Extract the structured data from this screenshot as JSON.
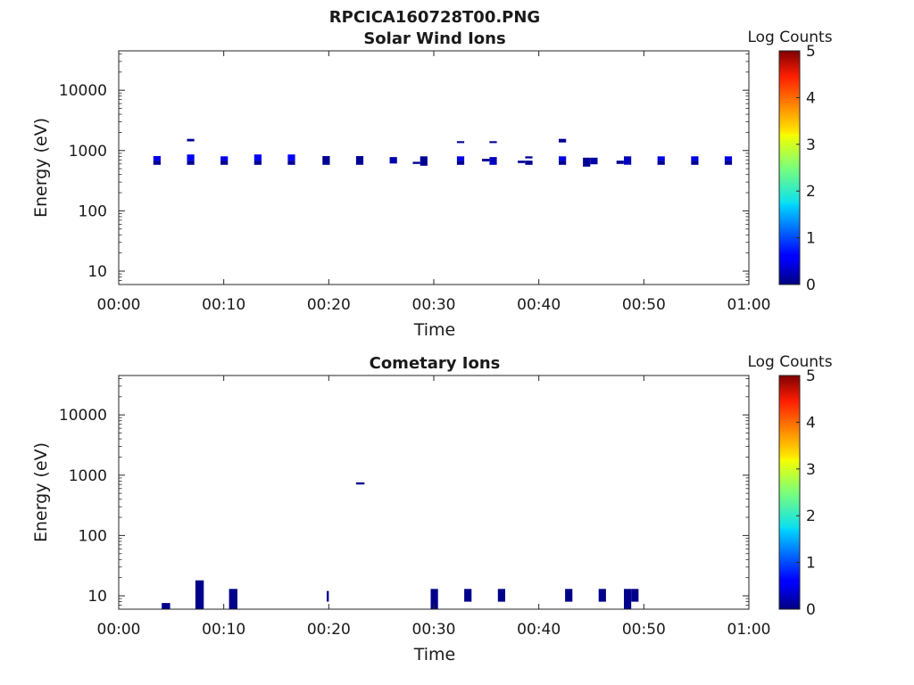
{
  "figure_title": "RPCICA160728T00.PNG",
  "chart_data": [
    {
      "type": "heatmap",
      "title": "Solar Wind Ions",
      "xlabel": "Time",
      "ylabel": "Energy (eV)",
      "x_unit": "minutes after 00:00",
      "xlim": [
        0,
        60
      ],
      "xticks": [
        "00:00",
        "00:10",
        "00:20",
        "00:30",
        "00:40",
        "00:50",
        "01:00"
      ],
      "ylim": [
        6,
        45000
      ],
      "yscale": "log",
      "yticks": [
        "10",
        "100",
        "1000",
        "10000"
      ],
      "colorbar": {
        "label": "Log Counts",
        "range": [
          0,
          5
        ],
        "ticks": [
          "0",
          "1",
          "2",
          "3",
          "4",
          "5"
        ],
        "colormap": "jet"
      },
      "cells": [
        {
          "t0": 3.3,
          "t1": 4.0,
          "e0": 580,
          "e1": 680,
          "v": 0.1
        },
        {
          "t0": 3.3,
          "t1": 4.0,
          "e0": 680,
          "e1": 810,
          "v": 0.5
        },
        {
          "t0": 6.5,
          "t1": 7.2,
          "e0": 580,
          "e1": 680,
          "v": 0.1
        },
        {
          "t0": 6.5,
          "t1": 7.2,
          "e0": 680,
          "e1": 860,
          "v": 0.6
        },
        {
          "t0": 6.5,
          "t1": 7.2,
          "e0": 1420,
          "e1": 1560,
          "v": 0.1
        },
        {
          "t0": 9.7,
          "t1": 10.4,
          "e0": 580,
          "e1": 680,
          "v": 0.1
        },
        {
          "t0": 9.7,
          "t1": 10.4,
          "e0": 680,
          "e1": 800,
          "v": 0.5
        },
        {
          "t0": 12.9,
          "t1": 13.6,
          "e0": 580,
          "e1": 680,
          "v": 0.1
        },
        {
          "t0": 12.9,
          "t1": 13.6,
          "e0": 680,
          "e1": 860,
          "v": 0.6
        },
        {
          "t0": 16.1,
          "t1": 16.8,
          "e0": 580,
          "e1": 680,
          "v": 0.1
        },
        {
          "t0": 16.1,
          "t1": 16.8,
          "e0": 680,
          "e1": 860,
          "v": 0.6
        },
        {
          "t0": 19.4,
          "t1": 20.1,
          "e0": 580,
          "e1": 810,
          "v": 0.1
        },
        {
          "t0": 22.6,
          "t1": 23.3,
          "e0": 580,
          "e1": 810,
          "v": 0.1
        },
        {
          "t0": 25.8,
          "t1": 26.5,
          "e0": 610,
          "e1": 780,
          "v": 0.2
        },
        {
          "t0": 28.0,
          "t1": 28.7,
          "e0": 600,
          "e1": 650,
          "v": 0.1
        },
        {
          "t0": 28.7,
          "t1": 29.4,
          "e0": 560,
          "e1": 800,
          "v": 0.1
        },
        {
          "t0": 32.2,
          "t1": 32.9,
          "e0": 1330,
          "e1": 1430,
          "v": 0.1
        },
        {
          "t0": 32.2,
          "t1": 32.9,
          "e0": 580,
          "e1": 680,
          "v": 0.1
        },
        {
          "t0": 32.2,
          "t1": 32.9,
          "e0": 680,
          "e1": 800,
          "v": 0.5
        },
        {
          "t0": 34.6,
          "t1": 35.3,
          "e0": 660,
          "e1": 730,
          "v": 0.1
        },
        {
          "t0": 35.3,
          "t1": 36.0,
          "e0": 580,
          "e1": 780,
          "v": 0.3
        },
        {
          "t0": 35.3,
          "t1": 36.0,
          "e0": 1330,
          "e1": 1430,
          "v": 0.1
        },
        {
          "t0": 38.0,
          "t1": 38.7,
          "e0": 620,
          "e1": 680,
          "v": 0.1
        },
        {
          "t0": 38.7,
          "t1": 39.4,
          "e0": 580,
          "e1": 680,
          "v": 0.1
        },
        {
          "t0": 38.7,
          "t1": 39.4,
          "e0": 740,
          "e1": 800,
          "v": 0.1
        },
        {
          "t0": 41.9,
          "t1": 42.6,
          "e0": 580,
          "e1": 680,
          "v": 0.1
        },
        {
          "t0": 41.9,
          "t1": 42.6,
          "e0": 680,
          "e1": 800,
          "v": 0.5
        },
        {
          "t0": 41.9,
          "t1": 42.6,
          "e0": 1360,
          "e1": 1560,
          "v": 0.1
        },
        {
          "t0": 44.2,
          "t1": 44.9,
          "e0": 540,
          "e1": 760,
          "v": 0.1
        },
        {
          "t0": 44.9,
          "t1": 45.6,
          "e0": 590,
          "e1": 760,
          "v": 0.2
        },
        {
          "t0": 47.4,
          "t1": 48.1,
          "e0": 600,
          "e1": 680,
          "v": 0.1
        },
        {
          "t0": 48.1,
          "t1": 48.8,
          "e0": 580,
          "e1": 800,
          "v": 0.3
        },
        {
          "t0": 51.3,
          "t1": 52.0,
          "e0": 580,
          "e1": 680,
          "v": 0.1
        },
        {
          "t0": 51.3,
          "t1": 52.0,
          "e0": 680,
          "e1": 800,
          "v": 0.5
        },
        {
          "t0": 54.5,
          "t1": 55.2,
          "e0": 580,
          "e1": 680,
          "v": 0.1
        },
        {
          "t0": 54.5,
          "t1": 55.2,
          "e0": 680,
          "e1": 800,
          "v": 0.5
        },
        {
          "t0": 57.7,
          "t1": 58.4,
          "e0": 580,
          "e1": 680,
          "v": 0.1
        },
        {
          "t0": 57.7,
          "t1": 58.4,
          "e0": 680,
          "e1": 800,
          "v": 0.5
        }
      ]
    },
    {
      "type": "heatmap",
      "title": "Cometary Ions",
      "xlabel": "Time",
      "ylabel": "Energy (eV)",
      "x_unit": "minutes after 00:00",
      "xlim": [
        0,
        60
      ],
      "xticks": [
        "00:00",
        "00:10",
        "00:20",
        "00:30",
        "00:40",
        "00:50",
        "01:00"
      ],
      "ylim": [
        6,
        45000
      ],
      "yscale": "log",
      "yticks": [
        "10",
        "100",
        "1000",
        "10000"
      ],
      "colorbar": {
        "label": "Log Counts",
        "range": [
          0,
          5
        ],
        "ticks": [
          "0",
          "1",
          "2",
          "3",
          "4",
          "5"
        ],
        "colormap": "jet"
      },
      "cells": [
        {
          "t0": 4.1,
          "t1": 4.9,
          "e0": 6,
          "e1": 7.6,
          "v": 0.05
        },
        {
          "t0": 7.3,
          "t1": 8.1,
          "e0": 6,
          "e1": 18,
          "v": 0.05
        },
        {
          "t0": 10.5,
          "t1": 11.3,
          "e0": 6,
          "e1": 13,
          "v": 0.05
        },
        {
          "t0": 19.8,
          "t1": 20.0,
          "e0": 8,
          "e1": 12,
          "v": 0.05
        },
        {
          "t0": 22.6,
          "t1": 23.4,
          "e0": 700,
          "e1": 760,
          "v": 0.05
        },
        {
          "t0": 29.7,
          "t1": 30.4,
          "e0": 6,
          "e1": 13,
          "v": 0.05
        },
        {
          "t0": 32.9,
          "t1": 33.6,
          "e0": 8,
          "e1": 13,
          "v": 0.05
        },
        {
          "t0": 36.1,
          "t1": 36.8,
          "e0": 8,
          "e1": 13,
          "v": 0.05
        },
        {
          "t0": 42.5,
          "t1": 43.2,
          "e0": 8,
          "e1": 13,
          "v": 0.05
        },
        {
          "t0": 45.7,
          "t1": 46.4,
          "e0": 8,
          "e1": 13,
          "v": 0.05
        },
        {
          "t0": 48.1,
          "t1": 48.8,
          "e0": 6,
          "e1": 13,
          "v": 0.05
        },
        {
          "t0": 48.8,
          "t1": 49.5,
          "e0": 8,
          "e1": 13,
          "v": 0.05
        }
      ]
    }
  ]
}
